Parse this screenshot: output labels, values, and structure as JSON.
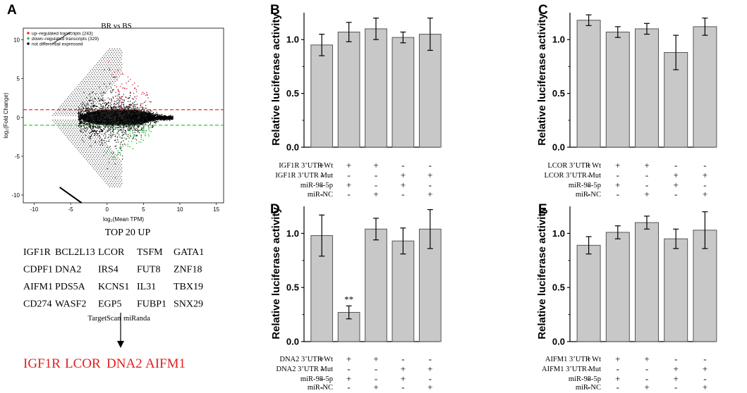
{
  "panels_text": {
    "A": "A",
    "B": "B",
    "C": "C",
    "D": "D",
    "E": "E"
  },
  "ma_plot": {
    "title": "BR  vs BS",
    "xlabel": "log₂(Mean TPM)",
    "ylabel": "log₂(Fold Change)",
    "xticks": [
      "-10",
      "-5",
      "0",
      "5",
      "10",
      "15"
    ],
    "yticks": [
      "10",
      "5",
      "0",
      "-5",
      "-10"
    ],
    "legend": [
      {
        "label": "up–regulated transcripts (243)",
        "color": "#e0304a"
      },
      {
        "label": "down–regulated transcripts (329)",
        "color": "#2fbf3a"
      },
      {
        "label": "not differential expressed",
        "color": "#000000"
      }
    ],
    "threshold_up_color": "#e03030",
    "threshold_down_color": "#33cc33"
  },
  "top20": {
    "title": "TOP 20 UP",
    "title_color": "#e02020",
    "rows": [
      [
        "IGF1R",
        "BCL2L13",
        "LCOR",
        "TSFM",
        "GATA1"
      ],
      [
        "CDPF1",
        "DNA2",
        "IRS4",
        "FUT8",
        "ZNF18"
      ],
      [
        "AIFM1",
        "PDS5A",
        "KCNS1",
        "IL31",
        "TBX19"
      ],
      [
        "CD274",
        "WASF2",
        "EGP5",
        "FUBP1",
        "SNX29"
      ]
    ],
    "tools": [
      "TargetScan",
      "miRanda"
    ],
    "final": [
      "IGF1R",
      "LCOR",
      "DNA2",
      "AIFM1"
    ],
    "final_color": "#e02020"
  },
  "chart_data": [
    {
      "type": "bar",
      "panel": "B",
      "ylabel": "Relative luciferase activity",
      "ylim": [
        0,
        1.25
      ],
      "yticks": [
        "0.0",
        "0.5",
        "1.0"
      ],
      "values": [
        0.95,
        1.07,
        1.1,
        1.02,
        1.05
      ],
      "errors": [
        0.1,
        0.09,
        0.1,
        0.05,
        0.15
      ],
      "annotations": [
        "",
        "",
        "",
        "",
        ""
      ],
      "rows": [
        {
          "label": "IGF1R 3’UTR Wt",
          "signs": [
            "+",
            "+",
            "+",
            "-",
            "-"
          ]
        },
        {
          "label": "IGF1R 3’UTR Mut",
          "signs": [
            "-",
            "-",
            "-",
            "+",
            "+"
          ]
        },
        {
          "label": "miR-98-5p",
          "signs": [
            "-",
            "+",
            "-",
            "+",
            "-"
          ]
        },
        {
          "label": "miR-NC",
          "signs": [
            "-",
            "-",
            "+",
            "-",
            "+"
          ]
        }
      ]
    },
    {
      "type": "bar",
      "panel": "C",
      "ylabel": "Relative luciferase activity",
      "ylim": [
        0,
        1.25
      ],
      "yticks": [
        "0.0",
        "0.5",
        "1.0"
      ],
      "values": [
        1.18,
        1.07,
        1.1,
        0.88,
        1.12
      ],
      "errors": [
        0.05,
        0.05,
        0.05,
        0.16,
        0.08
      ],
      "annotations": [
        "",
        "",
        "",
        "",
        ""
      ],
      "rows": [
        {
          "label": "LCOR 3’UTR Wt",
          "signs": [
            "+",
            "+",
            "+",
            "-",
            "-"
          ]
        },
        {
          "label": "LCOR 3’UTR Mut",
          "signs": [
            "-",
            "-",
            "-",
            "+",
            "+"
          ]
        },
        {
          "label": "miR-98-5p",
          "signs": [
            "-",
            "+",
            "-",
            "+",
            "-"
          ]
        },
        {
          "label": "miR-NC",
          "signs": [
            "-",
            "-",
            "+",
            "-",
            "+"
          ]
        }
      ]
    },
    {
      "type": "bar",
      "panel": "D",
      "ylabel": "Relative luciferase activity",
      "ylim": [
        0,
        1.25
      ],
      "yticks": [
        "0.0",
        "0.5",
        "1.0"
      ],
      "values": [
        0.98,
        0.27,
        1.04,
        0.93,
        1.04
      ],
      "errors": [
        0.19,
        0.06,
        0.1,
        0.12,
        0.18
      ],
      "annotations": [
        "",
        "**",
        "",
        "",
        ""
      ],
      "rows": [
        {
          "label": "DNA2 3’UTR Wt",
          "signs": [
            "+",
            "+",
            "+",
            "-",
            "-"
          ]
        },
        {
          "label": "DNA2 3’UTR Mut",
          "signs": [
            "-",
            "-",
            "-",
            "+",
            "+"
          ]
        },
        {
          "label": "miR-98-5p",
          "signs": [
            "-",
            "+",
            "-",
            "+",
            "-"
          ]
        },
        {
          "label": "miR-NC",
          "signs": [
            "-",
            "-",
            "+",
            "-",
            "+"
          ]
        }
      ]
    },
    {
      "type": "bar",
      "panel": "E",
      "ylabel": "Relative luciferase activity",
      "ylim": [
        0,
        1.25
      ],
      "yticks": [
        "0.0",
        "0.5",
        "1.0"
      ],
      "values": [
        0.89,
        1.01,
        1.1,
        0.95,
        1.03
      ],
      "errors": [
        0.08,
        0.06,
        0.06,
        0.09,
        0.17
      ],
      "annotations": [
        "",
        "",
        "",
        "",
        ""
      ],
      "rows": [
        {
          "label": "AIFM1 3’UTR Wt",
          "signs": [
            "+",
            "+",
            "+",
            "-",
            "-"
          ]
        },
        {
          "label": "AIFM1 3’UTR Mut",
          "signs": [
            "-",
            "-",
            "-",
            "+",
            "+"
          ]
        },
        {
          "label": "miR-98-5p",
          "signs": [
            "-",
            "+",
            "-",
            "+",
            "-"
          ]
        },
        {
          "label": "miR-NC",
          "signs": [
            "-",
            "-",
            "+",
            "-",
            "+"
          ]
        }
      ]
    }
  ],
  "colors": {
    "bar_fill": "#c8c8c8",
    "bar_stroke": "#555555"
  }
}
